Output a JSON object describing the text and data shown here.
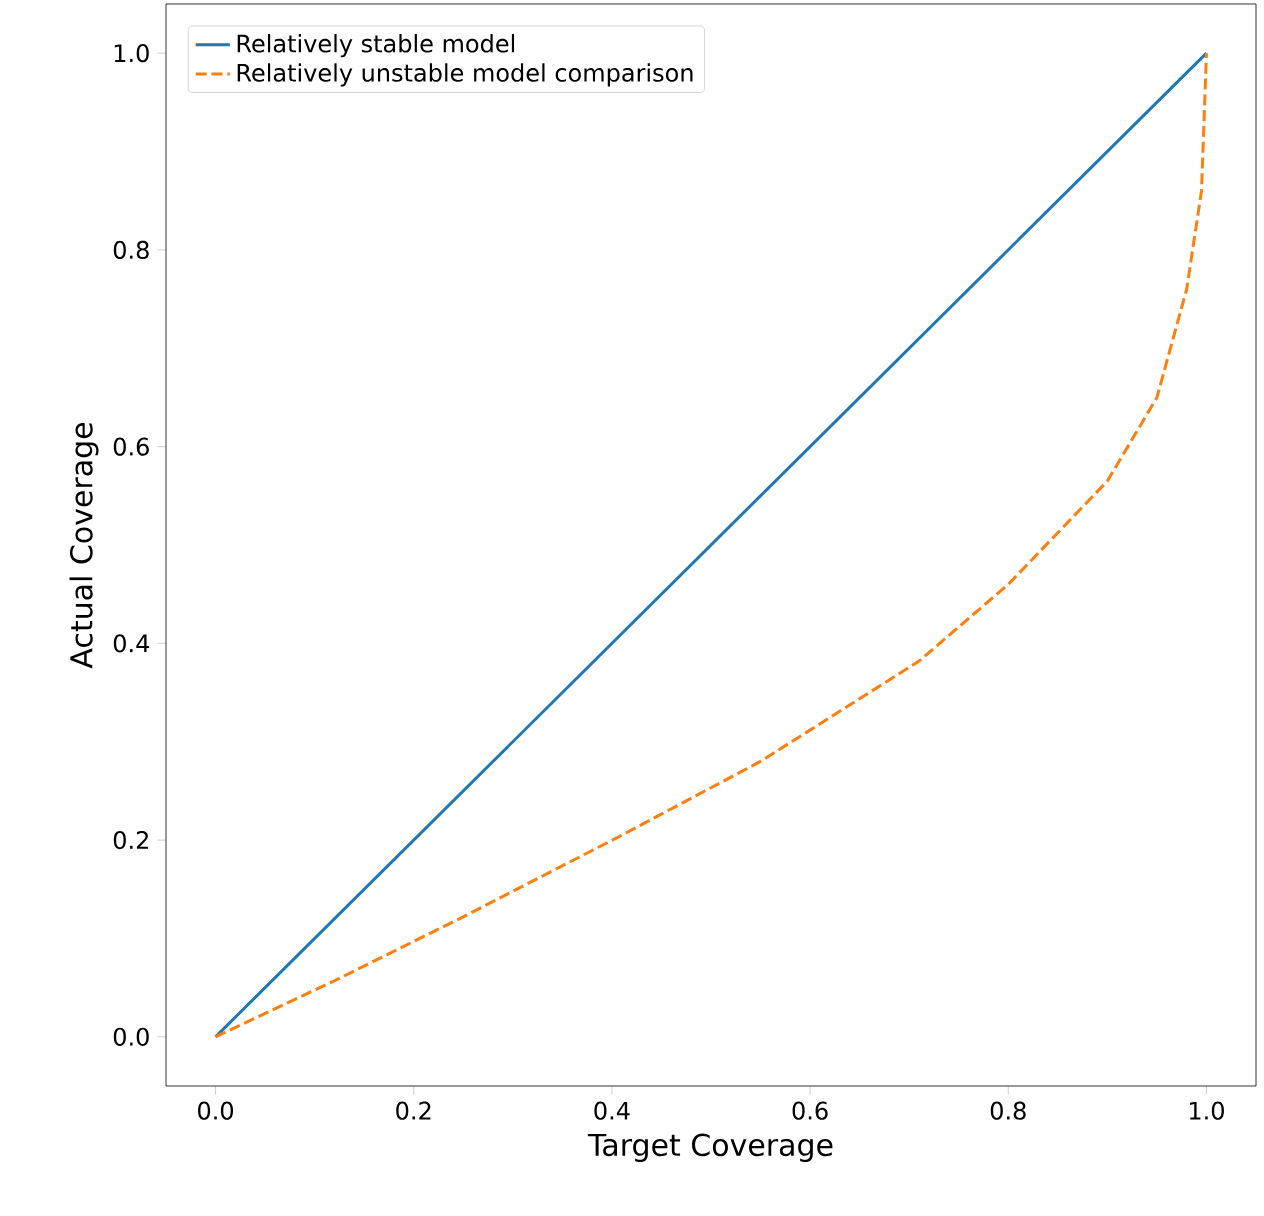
{
  "chart_data": {
    "type": "line",
    "xlabel": "Target Coverage",
    "ylabel": "Actual Coverage",
    "xlim": [
      -0.05,
      1.05
    ],
    "ylim": [
      -0.05,
      1.05
    ],
    "xticks": [
      {
        "value": 0,
        "label": "0.0"
      },
      {
        "value": 0.2,
        "label": "0.2"
      },
      {
        "value": 0.4,
        "label": "0.4"
      },
      {
        "value": 0.6,
        "label": "0.6"
      },
      {
        "value": 0.8,
        "label": "0.8"
      },
      {
        "value": 1,
        "label": "1.0"
      }
    ],
    "yticks": [
      {
        "value": 0,
        "label": "0.0"
      },
      {
        "value": 0.2,
        "label": "0.2"
      },
      {
        "value": 0.4,
        "label": "0.4"
      },
      {
        "value": 0.6,
        "label": "0.6"
      },
      {
        "value": 0.8,
        "label": "0.8"
      },
      {
        "value": 1,
        "label": "1.0"
      }
    ],
    "legend": "top left",
    "series": [
      {
        "name": "Relatively stable model",
        "color": "#1f77b4",
        "line_style": "solid",
        "x": [
          0,
          1
        ],
        "values": [
          0,
          1
        ]
      },
      {
        "name": "Relatively unstable model comparison",
        "color": "#ff7f0e",
        "line_style": "dashed",
        "x": [
          0,
          0.12,
          0.25,
          0.41,
          0.55,
          0.71,
          0.8,
          0.9,
          0.95,
          0.98,
          0.995,
          1
        ],
        "values": [
          0,
          0.057,
          0.122,
          0.205,
          0.28,
          0.382,
          0.46,
          0.565,
          0.65,
          0.76,
          0.86,
          1
        ]
      }
    ]
  }
}
